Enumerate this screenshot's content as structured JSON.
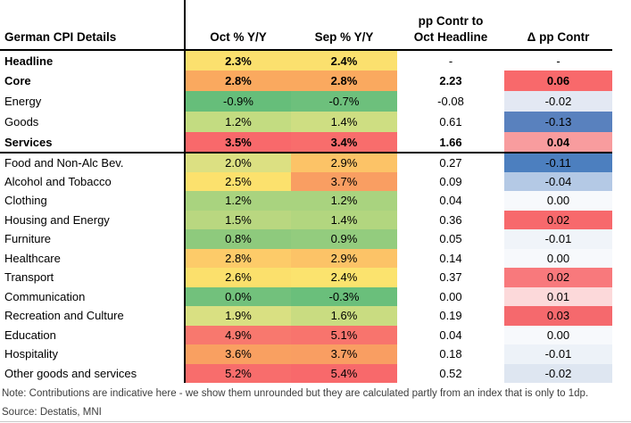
{
  "table": {
    "title": "German CPI Details",
    "col_headers": {
      "oct": "Oct % Y/Y",
      "sep": "Sep % Y/Y",
      "pp_line1": "pp Contr to",
      "pp_line2": "Oct Headline",
      "delta": "Δ pp Contr"
    },
    "rows": [
      {
        "label": "Headline",
        "bold": true,
        "section": "agg",
        "group_end": false,
        "oct": "2.3%",
        "sep": "2.4%",
        "pp": "-",
        "delta": "-",
        "oct_bg": "#FBE06E",
        "sep_bg": "#FBE06E",
        "delta_bg": null
      },
      {
        "label": "Core",
        "bold": true,
        "section": "agg",
        "group_end": false,
        "oct": "2.8%",
        "sep": "2.8%",
        "pp": "2.23",
        "delta": "0.06",
        "oct_bg": "#FAA95F",
        "sep_bg": "#FAA95F",
        "delta_bg": "#F8696B"
      },
      {
        "label": "Energy",
        "bold": false,
        "section": "agg",
        "group_end": false,
        "oct": "-0.9%",
        "sep": "-0.7%",
        "pp": "-0.08",
        "delta": "-0.02",
        "oct_bg": "#66BE7A",
        "sep_bg": "#6DC07C",
        "delta_bg": "#E3E8F3"
      },
      {
        "label": "Goods",
        "bold": false,
        "section": "agg",
        "group_end": false,
        "oct": "1.2%",
        "sep": "1.4%",
        "pp": "0.61",
        "delta": "-0.13",
        "oct_bg": "#C3DC81",
        "sep_bg": "#CEDE82",
        "delta_bg": "#5981BE"
      },
      {
        "label": "Services",
        "bold": true,
        "section": "agg",
        "group_end": true,
        "oct": "3.5%",
        "sep": "3.4%",
        "pp": "1.66",
        "delta": "0.04",
        "oct_bg": "#F8696B",
        "sep_bg": "#F86D6C",
        "delta_bg": "#F89C9E"
      },
      {
        "label": "Food and Non-Alc Bev.",
        "bold": false,
        "section": "detail",
        "group_end": false,
        "oct": "2.0%",
        "sep": "2.9%",
        "pp": "0.27",
        "delta": "-0.11",
        "oct_bg": "#DCE082",
        "sep_bg": "#FCC367",
        "delta_bg": "#4C7FBF"
      },
      {
        "label": "Alcohol and Tobacco",
        "bold": false,
        "section": "detail",
        "group_end": false,
        "oct": "2.5%",
        "sep": "3.7%",
        "pp": "0.09",
        "delta": "-0.04",
        "oct_bg": "#FCE16D",
        "sep_bg": "#F99E62",
        "delta_bg": "#B4C9E5"
      },
      {
        "label": "Clothing",
        "bold": false,
        "section": "detail",
        "group_end": false,
        "oct": "1.2%",
        "sep": "1.2%",
        "pp": "0.04",
        "delta": "0.00",
        "oct_bg": "#A9D37F",
        "sep_bg": "#A9D37F",
        "delta_bg": "#F7F9FC"
      },
      {
        "label": "Housing and Energy",
        "bold": false,
        "section": "detail",
        "group_end": false,
        "oct": "1.5%",
        "sep": "1.4%",
        "pp": "0.36",
        "delta": "0.02",
        "oct_bg": "#B9D780",
        "sep_bg": "#B2D67F",
        "delta_bg": "#F7696C"
      },
      {
        "label": "Furniture",
        "bold": false,
        "section": "detail",
        "group_end": false,
        "oct": "0.8%",
        "sep": "0.9%",
        "pp": "0.05",
        "delta": "-0.01",
        "oct_bg": "#8ECA7D",
        "sep_bg": "#93CC7E",
        "delta_bg": "#F0F4F9"
      },
      {
        "label": "Healthcare",
        "bold": false,
        "section": "detail",
        "group_end": false,
        "oct": "2.8%",
        "sep": "2.9%",
        "pp": "0.14",
        "delta": "0.00",
        "oct_bg": "#FDCB69",
        "sep_bg": "#FCC367",
        "delta_bg": "#F7F9FC"
      },
      {
        "label": "Transport",
        "bold": false,
        "section": "detail",
        "group_end": false,
        "oct": "2.6%",
        "sep": "2.4%",
        "pp": "0.37",
        "delta": "0.02",
        "oct_bg": "#FBE06C",
        "sep_bg": "#FBE36E",
        "delta_bg": "#F8797C"
      },
      {
        "label": "Communication",
        "bold": false,
        "section": "detail",
        "group_end": false,
        "oct": "0.0%",
        "sep": "-0.3%",
        "pp": "0.00",
        "delta": "0.01",
        "oct_bg": "#72C17C",
        "sep_bg": "#6ABF7B",
        "delta_bg": "#FCD9DA"
      },
      {
        "label": "Recreation and Culture",
        "bold": false,
        "section": "detail",
        "group_end": false,
        "oct": "1.9%",
        "sep": "1.6%",
        "pp": "0.19",
        "delta": "0.03",
        "oct_bg": "#D9E082",
        "sep_bg": "#C9DC81",
        "delta_bg": "#F5696D"
      },
      {
        "label": "Education",
        "bold": false,
        "section": "detail",
        "group_end": false,
        "oct": "4.9%",
        "sep": "5.1%",
        "pp": "0.04",
        "delta": "0.00",
        "oct_bg": "#F8786E",
        "sep_bg": "#F8746D",
        "delta_bg": "#F7F9FC"
      },
      {
        "label": "Hospitality",
        "bold": false,
        "section": "detail",
        "group_end": false,
        "oct": "3.6%",
        "sep": "3.7%",
        "pp": "0.18",
        "delta": "-0.01",
        "oct_bg": "#F9A061",
        "sep_bg": "#F99E62",
        "delta_bg": "#EDF2F8"
      },
      {
        "label": "Other goods and services",
        "bold": false,
        "section": "detail",
        "group_end": false,
        "oct": "5.2%",
        "sep": "5.4%",
        "pp": "0.52",
        "delta": "-0.02",
        "oct_bg": "#F86D6C",
        "sep_bg": "#F8696B",
        "delta_bg": "#DEE6F1"
      }
    ]
  },
  "note": "Note: Contributions are indicative here - we show them unrounded but they are calculated partly from an index that is only to 1dp.",
  "source": "Source: Destatis, MNI",
  "colors": {
    "heat_green": "#63BE7B",
    "heat_yellow": "#FFEB84",
    "heat_red": "#F8696B",
    "delta_blue": "#5A8AC6",
    "rule_black": "#000000",
    "footnote_gray": "#3d3d3d"
  },
  "chart_data": {
    "type": "table",
    "title": "German CPI Details",
    "columns": [
      "Oct % Y/Y",
      "Sep % Y/Y",
      "pp Contr to Oct Headline",
      "Δ pp Contr"
    ],
    "heatmap_note": "Y/Y columns shaded green (low) to yellow to red (high); Δ pp Contr shaded blue (negative) to white to red (positive)",
    "rows": [
      {
        "label": "Headline",
        "oct_yoy": 2.3,
        "sep_yoy": 2.4,
        "pp_contr": null,
        "delta_pp": null
      },
      {
        "label": "Core",
        "oct_yoy": 2.8,
        "sep_yoy": 2.8,
        "pp_contr": 2.23,
        "delta_pp": 0.06
      },
      {
        "label": "Energy",
        "oct_yoy": -0.9,
        "sep_yoy": -0.7,
        "pp_contr": -0.08,
        "delta_pp": -0.02
      },
      {
        "label": "Goods",
        "oct_yoy": 1.2,
        "sep_yoy": 1.4,
        "pp_contr": 0.61,
        "delta_pp": -0.13
      },
      {
        "label": "Services",
        "oct_yoy": 3.5,
        "sep_yoy": 3.4,
        "pp_contr": 1.66,
        "delta_pp": 0.04
      },
      {
        "label": "Food and Non-Alc Bev.",
        "oct_yoy": 2.0,
        "sep_yoy": 2.9,
        "pp_contr": 0.27,
        "delta_pp": -0.11
      },
      {
        "label": "Alcohol and Tobacco",
        "oct_yoy": 2.5,
        "sep_yoy": 3.7,
        "pp_contr": 0.09,
        "delta_pp": -0.04
      },
      {
        "label": "Clothing",
        "oct_yoy": 1.2,
        "sep_yoy": 1.2,
        "pp_contr": 0.04,
        "delta_pp": 0.0
      },
      {
        "label": "Housing and Energy",
        "oct_yoy": 1.5,
        "sep_yoy": 1.4,
        "pp_contr": 0.36,
        "delta_pp": 0.02
      },
      {
        "label": "Furniture",
        "oct_yoy": 0.8,
        "sep_yoy": 0.9,
        "pp_contr": 0.05,
        "delta_pp": -0.01
      },
      {
        "label": "Healthcare",
        "oct_yoy": 2.8,
        "sep_yoy": 2.9,
        "pp_contr": 0.14,
        "delta_pp": 0.0
      },
      {
        "label": "Transport",
        "oct_yoy": 2.6,
        "sep_yoy": 2.4,
        "pp_contr": 0.37,
        "delta_pp": 0.02
      },
      {
        "label": "Communication",
        "oct_yoy": 0.0,
        "sep_yoy": -0.3,
        "pp_contr": 0.0,
        "delta_pp": 0.01
      },
      {
        "label": "Recreation and Culture",
        "oct_yoy": 1.9,
        "sep_yoy": 1.6,
        "pp_contr": 0.19,
        "delta_pp": 0.03
      },
      {
        "label": "Education",
        "oct_yoy": 4.9,
        "sep_yoy": 5.1,
        "pp_contr": 0.04,
        "delta_pp": 0.0
      },
      {
        "label": "Hospitality",
        "oct_yoy": 3.6,
        "sep_yoy": 3.7,
        "pp_contr": 0.18,
        "delta_pp": -0.01
      },
      {
        "label": "Other goods and services",
        "oct_yoy": 5.2,
        "sep_yoy": 5.4,
        "pp_contr": 0.52,
        "delta_pp": -0.02
      }
    ]
  }
}
